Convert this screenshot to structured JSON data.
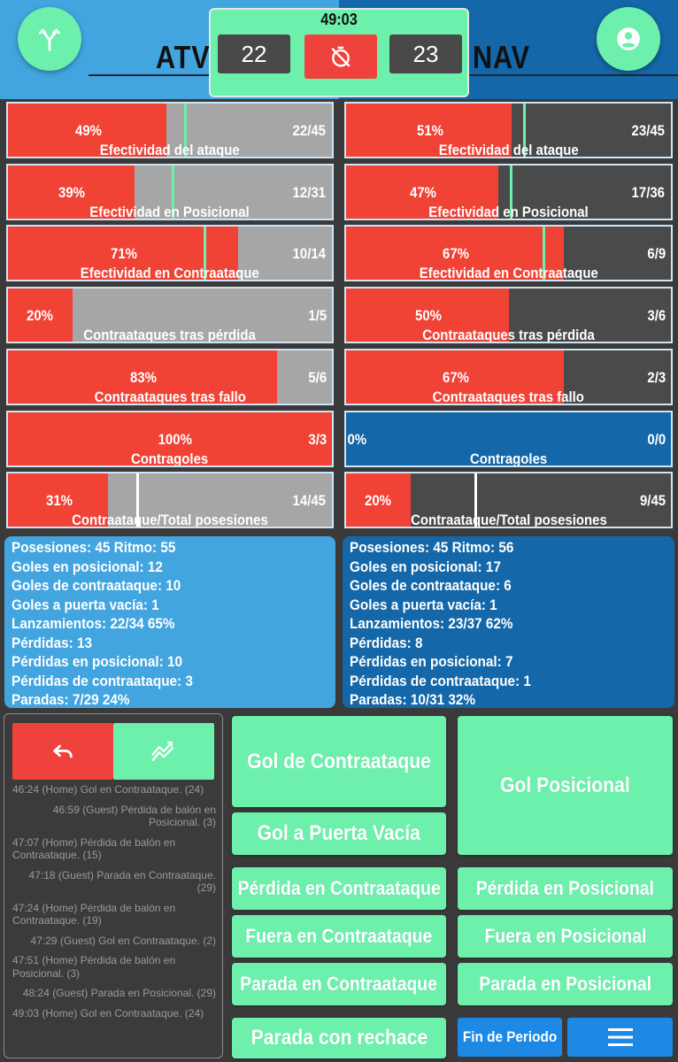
{
  "header": {
    "home_team": "ATV",
    "guest_team": "NAV",
    "clock": "49:03",
    "home_score": "22",
    "guest_score": "23",
    "left_button_icon": "fork-arrows-icon",
    "right_button_icon": "account-circle-icon",
    "timer_button_icon": "timer-off-icon"
  },
  "colors": {
    "home_bg": "#42a5e0",
    "guest_bg": "#1467a8",
    "accent_green": "#6cf0ac",
    "bar_red": "#f14236",
    "home_bar_bg": "#a6a6a6",
    "guest_bar_bg": "#4a4a4a"
  },
  "home_stats": [
    {
      "pct": "49%",
      "ratio": "22/45",
      "label": "Efectividad del ataque",
      "fill": 0.49,
      "marker": 0.545,
      "marker_color": "#6cf0ac"
    },
    {
      "pct": "39%",
      "ratio": "12/31",
      "label": "Efectividad en Posicional",
      "fill": 0.39,
      "marker": 0.505,
      "marker_color": "#6cf0ac"
    },
    {
      "pct": "71%",
      "ratio": "10/14",
      "label": "Efectividad en Contraataque",
      "fill": 0.71,
      "marker": 0.605,
      "marker_color": "#6cf0ac"
    },
    {
      "pct": "20%",
      "ratio": "1/5",
      "label": "Contraataques tras pérdida",
      "fill": 0.2,
      "marker": null
    },
    {
      "pct": "83%",
      "ratio": "5/6",
      "label": "Contraataques tras fallo",
      "fill": 0.83,
      "marker": null
    },
    {
      "pct": "100%",
      "ratio": "3/3",
      "label": "Contragoles",
      "fill": 1.0,
      "marker": null
    },
    {
      "pct": "31%",
      "ratio": "14/45",
      "label": "Contraataque/Total posesiones",
      "fill": 0.31,
      "marker": 0.395,
      "marker_color": "#ffffff"
    }
  ],
  "guest_stats": [
    {
      "pct": "51%",
      "ratio": "23/45",
      "label": "Efectividad del ataque",
      "fill": 0.51,
      "marker": 0.545,
      "marker_color": "#6cf0ac"
    },
    {
      "pct": "47%",
      "ratio": "17/36",
      "label": "Efectividad en Posicional",
      "fill": 0.47,
      "marker": 0.505,
      "marker_color": "#6cf0ac"
    },
    {
      "pct": "67%",
      "ratio": "6/9",
      "label": "Efectividad en Contraataque",
      "fill": 0.67,
      "marker": 0.605,
      "marker_color": "#6cf0ac"
    },
    {
      "pct": "50%",
      "ratio": "3/6",
      "label": "Contraataques tras pérdida",
      "fill": 0.5,
      "marker": null
    },
    {
      "pct": "67%",
      "ratio": "2/3",
      "label": "Contraataques tras fallo",
      "fill": 0.67,
      "marker": null
    },
    {
      "pct": "0%",
      "ratio": "0/0",
      "label": "Contragoles",
      "fill": 0.0,
      "marker": null,
      "empty": true
    },
    {
      "pct": "20%",
      "ratio": "9/45",
      "label": "Contraataque/Total posesiones",
      "fill": 0.2,
      "marker": 0.395,
      "marker_color": "#ffffff"
    }
  ],
  "home_summary": [
    "Posesiones: 45 Ritmo: 55",
    "Goles en posicional: 12",
    "Goles de contraataque: 10",
    "Goles a puerta vacía: 1",
    "Lanzamientos: 22/34 65%",
    "Pérdidas: 13",
    "Pérdidas en posicional: 10",
    "Pérdidas de contraataque: 3",
    "Paradas: 7/29 24%"
  ],
  "guest_summary": [
    "Posesiones: 45 Ritmo: 56",
    "Goles en posicional: 17",
    "Goles de contraataque: 6",
    "Goles a puerta vacía: 1",
    "Lanzamientos: 23/37 62%",
    "Pérdidas: 8",
    "Pérdidas en posicional: 7",
    "Pérdidas de contraataque: 1",
    "Paradas: 10/31 32%"
  ],
  "log": [
    {
      "text": "46:24 (Home) Gol en Contraataque. (24)",
      "side": "home"
    },
    {
      "text": "46:59 (Guest) Pérdida de balón en Posicional. (3)",
      "side": "guest"
    },
    {
      "text": "47:07 (Home) Pérdida de balón en Contraataque. (15)",
      "side": "home"
    },
    {
      "text": "47:18 (Guest) Parada en Contraataque. (29)",
      "side": "guest"
    },
    {
      "text": "47:24 (Home) Pérdida de balón en Contraataque. (19)",
      "side": "home"
    },
    {
      "text": "47:29 (Guest) Gol en Contraataque. (2)",
      "side": "guest"
    },
    {
      "text": "47:51 (Home) Pérdida de balón en Posicional. (3)",
      "side": "home"
    },
    {
      "text": "48:24 (Guest) Parada en Posicional. (29)",
      "side": "guest"
    },
    {
      "text": "49:03 (Home) Gol en Contraataque. (24)",
      "side": "home"
    }
  ],
  "log_panel": {
    "undo_icon": "undo-icon",
    "chart_icon": "trending-chart-icon"
  },
  "actions": {
    "gol_contraataque": "Gol de Contraataque",
    "gol_posicional": "Gol Posicional",
    "gol_puerta_vacia": "Gol a Puerta Vacía",
    "perdida_contraataque": "Pérdida en Contraataque",
    "perdida_posicional": "Pérdida en Posicional",
    "fuera_contraataque": "Fuera en Contraataque",
    "fuera_posicional": "Fuera en Posicional",
    "parada_contraataque": "Parada en Contraataque",
    "parada_posicional": "Parada en Posicional",
    "parada_rechace": "Parada con rechace",
    "fin_periodo": "Fin de Periodo",
    "menu_icon": "hamburger-menu-icon"
  }
}
